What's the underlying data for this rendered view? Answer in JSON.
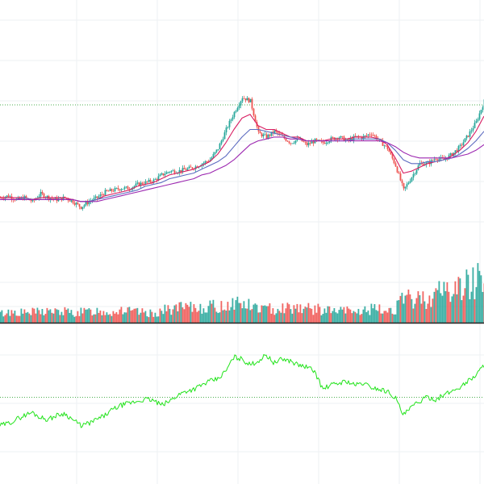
{
  "chart_data": [
    {
      "type": "line",
      "pane": "price",
      "title": "",
      "xlabel": "",
      "ylabel": "",
      "grid": true,
      "legend": "none",
      "x": [
        0,
        10,
        20,
        30,
        40,
        50,
        60,
        70,
        80,
        90,
        100,
        110,
        120,
        130,
        140,
        150,
        160,
        170,
        180,
        190,
        200,
        210,
        220,
        230,
        240,
        250,
        260,
        270,
        280,
        290,
        300,
        310,
        320,
        330,
        340,
        350,
        360,
        370,
        380,
        390,
        400,
        410,
        420,
        430,
        440,
        450,
        460,
        470,
        480,
        490,
        500,
        510,
        520,
        530,
        540,
        550,
        560,
        570,
        580,
        590,
        600
      ],
      "ylim": [
        0,
        100
      ],
      "reference_line": 83,
      "series": [
        {
          "values": [
            34,
            35,
            33,
            34,
            32,
            36,
            34,
            33,
            34,
            32,
            29,
            32,
            34,
            37,
            38,
            39,
            39,
            41,
            42,
            43,
            46,
            48,
            48,
            49,
            50,
            52,
            54,
            60,
            70,
            79,
            87,
            85,
            68,
            66,
            69,
            66,
            63,
            65,
            62,
            64,
            63,
            65,
            66,
            64,
            66,
            66,
            68,
            64,
            60,
            51,
            38,
            45,
            52,
            52,
            55,
            54,
            57,
            61,
            67,
            74,
            85
          ]
        },
        {
          "values": [
            34,
            34,
            34,
            34,
            33,
            34,
            34,
            34,
            34,
            33,
            32,
            32,
            33,
            35,
            36,
            37,
            38,
            40,
            41,
            42,
            44,
            46,
            47,
            48,
            49,
            51,
            53,
            57,
            63,
            70,
            76,
            78,
            72,
            70,
            70,
            68,
            66,
            66,
            64,
            64,
            64,
            65,
            65,
            65,
            66,
            66,
            66,
            65,
            62,
            55,
            47,
            48,
            50,
            52,
            53,
            54,
            56,
            59,
            63,
            69,
            77
          ]
        },
        {
          "values": [
            33,
            33,
            33,
            34,
            33,
            33,
            33,
            33,
            33,
            33,
            32,
            32,
            33,
            34,
            35,
            36,
            37,
            38,
            40,
            41,
            42,
            44,
            45,
            46,
            47,
            49,
            51,
            53,
            56,
            61,
            66,
            70,
            70,
            69,
            68,
            67,
            66,
            65,
            64,
            64,
            64,
            64,
            64,
            64,
            65,
            65,
            65,
            65,
            63,
            59,
            54,
            52,
            52,
            53,
            53,
            54,
            55,
            57,
            60,
            64,
            69
          ]
        },
        {
          "values": [
            33,
            33,
            33,
            33,
            33,
            33,
            33,
            33,
            33,
            33,
            32,
            32,
            32,
            33,
            34,
            35,
            36,
            37,
            38,
            39,
            40,
            41,
            42,
            43,
            44,
            46,
            47,
            49,
            51,
            54,
            58,
            62,
            64,
            65,
            66,
            66,
            65,
            65,
            64,
            64,
            64,
            64,
            64,
            64,
            64,
            64,
            64,
            64,
            63,
            61,
            58,
            56,
            55,
            55,
            55,
            55,
            55,
            56,
            57,
            59,
            62
          ]
        }
      ]
    },
    {
      "type": "bar",
      "pane": "volume",
      "title": "",
      "xlabel": "",
      "ylabel": "",
      "ylim": [
        0,
        100
      ],
      "x": [
        0,
        10,
        20,
        30,
        40,
        50,
        60,
        70,
        80,
        90,
        100,
        110,
        120,
        130,
        140,
        150,
        160,
        170,
        180,
        190,
        200,
        210,
        220,
        230,
        240,
        250,
        260,
        270,
        280,
        290,
        300,
        310,
        320,
        330,
        340,
        350,
        360,
        370,
        380,
        390,
        400,
        410,
        420,
        430,
        440,
        450,
        460,
        470,
        480,
        490,
        500,
        510,
        520,
        530,
        540,
        550,
        560,
        570,
        580,
        590,
        600
      ],
      "values": [
        12,
        14,
        15,
        13,
        14,
        15,
        16,
        14,
        15,
        13,
        14,
        15,
        16,
        15,
        14,
        18,
        15,
        14,
        13,
        12,
        16,
        18,
        20,
        19,
        20,
        21,
        22,
        20,
        24,
        28,
        26,
        22,
        20,
        18,
        19,
        21,
        20,
        22,
        19,
        18,
        17,
        16,
        15,
        16,
        14,
        16,
        18,
        17,
        16,
        20,
        30,
        32,
        31,
        34,
        38,
        45,
        42,
        48,
        52,
        58,
        70
      ],
      "up_color": "#26a69a",
      "down_color": "#ef5350"
    },
    {
      "type": "line",
      "pane": "indicator",
      "title": "",
      "xlabel": "",
      "ylabel": "",
      "ylim": [
        0,
        100
      ],
      "reference_line": 50,
      "x": [
        0,
        10,
        20,
        30,
        40,
        50,
        60,
        70,
        80,
        90,
        100,
        110,
        120,
        130,
        140,
        150,
        160,
        170,
        180,
        190,
        200,
        210,
        220,
        230,
        240,
        250,
        260,
        270,
        280,
        290,
        300,
        310,
        320,
        330,
        340,
        350,
        360,
        370,
        380,
        390,
        400,
        410,
        420,
        430,
        440,
        450,
        460,
        470,
        480,
        490,
        500,
        510,
        520,
        530,
        540,
        550,
        560,
        570,
        580,
        590,
        600
      ],
      "series": [
        {
          "values": [
            22,
            24,
            28,
            32,
            35,
            30,
            28,
            32,
            34,
            28,
            22,
            24,
            28,
            32,
            38,
            42,
            44,
            46,
            48,
            47,
            42,
            46,
            52,
            56,
            58,
            62,
            66,
            68,
            76,
            90,
            88,
            82,
            86,
            92,
            84,
            88,
            86,
            82,
            80,
            76,
            58,
            62,
            64,
            66,
            62,
            64,
            60,
            58,
            56,
            50,
            32,
            40,
            46,
            50,
            48,
            52,
            56,
            60,
            66,
            72,
            82
          ]
        }
      ],
      "color": "#22e31b"
    }
  ],
  "colors": {
    "grid": "#eef0f3",
    "price_ref": "#4caf50",
    "indicator_ref": "#4caf50",
    "ma_fast": "#26a69a",
    "ma_mid": "#d81b60",
    "ma_slow": "#5c6bc0",
    "ma_slowest": "#9c27b0",
    "candle_up": "#26a69a",
    "candle_down": "#ef5350"
  }
}
